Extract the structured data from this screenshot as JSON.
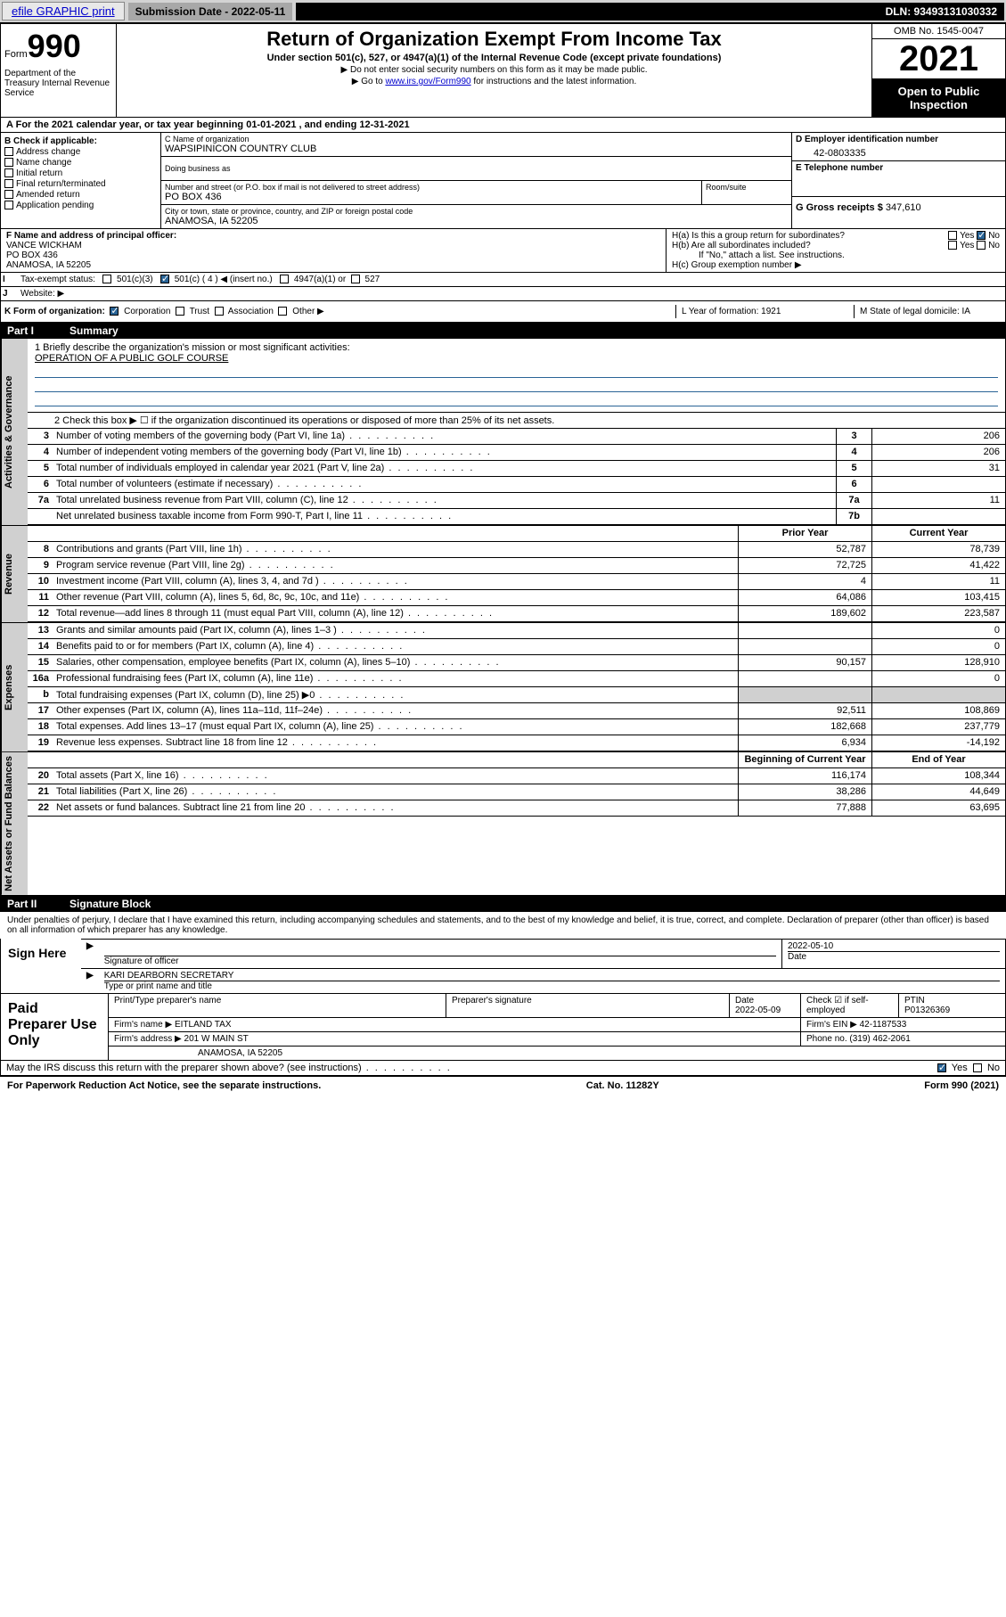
{
  "topbar": {
    "efile_link": "efile GRAPHIC print",
    "submission_label": "Submission Date - 2022-05-11",
    "dln": "DLN: 93493131030332"
  },
  "header": {
    "form_label": "Form",
    "form_number": "990",
    "title": "Return of Organization Exempt From Income Tax",
    "subtitle": "Under section 501(c), 527, or 4947(a)(1) of the Internal Revenue Code (except private foundations)",
    "note1": "▶ Do not enter social security numbers on this form as it may be made public.",
    "note2_pre": "▶ Go to ",
    "note2_link": "www.irs.gov/Form990",
    "note2_post": " for instructions and the latest information.",
    "omb": "OMB No. 1545-0047",
    "year": "2021",
    "open": "Open to Public Inspection",
    "dept": "Department of the Treasury Internal Revenue Service"
  },
  "line_a": "For the 2021 calendar year, or tax year beginning 01-01-2021   , and ending 12-31-2021",
  "check_b": {
    "hdr": "B Check if applicable:",
    "items": [
      "Address change",
      "Name change",
      "Initial return",
      "Final return/terminated",
      "Amended return",
      "Application pending"
    ]
  },
  "block_c": {
    "name_lbl": "C Name of organization",
    "name": "WAPSIPINICON COUNTRY CLUB",
    "dba_lbl": "Doing business as",
    "addr_lbl": "Number and street (or P.O. box if mail is not delivered to street address)",
    "room_lbl": "Room/suite",
    "addr": "PO BOX 436",
    "city_lbl": "City or town, state or province, country, and ZIP or foreign postal code",
    "city": "ANAMOSA, IA  52205"
  },
  "block_d": {
    "lbl": "D Employer identification number",
    "val": "42-0803335"
  },
  "block_e": {
    "lbl": "E Telephone number",
    "val": ""
  },
  "block_g": {
    "lbl": "G Gross receipts $",
    "val": "347,610"
  },
  "block_f": {
    "lbl": "F Name and address of principal officer:",
    "name": "VANCE WICKHAM",
    "addr1": "PO BOX 436",
    "addr2": "ANAMOSA, IA  52205"
  },
  "block_h": {
    "ha": "H(a)  Is this a group return for subordinates?",
    "ha_yes": "Yes",
    "ha_no": "No",
    "hb": "H(b)  Are all subordinates included?",
    "hb_yes": "Yes",
    "hb_no": "No",
    "hb_note": "If \"No,\" attach a list. See instructions.",
    "hc": "H(c)  Group exemption number ▶"
  },
  "line_i": {
    "lbl": "I",
    "text": "Tax-exempt status:",
    "o1": "501(c)(3)",
    "o2": "501(c) ( 4 ) ◀ (insert no.)",
    "o3": "4947(a)(1) or",
    "o4": "527"
  },
  "line_j": {
    "lbl": "J",
    "text": "Website: ▶"
  },
  "line_k": {
    "lbl": "K Form of organization:",
    "o1": "Corporation",
    "o2": "Trust",
    "o3": "Association",
    "o4": "Other ▶"
  },
  "line_l": {
    "text": "L Year of formation: 1921"
  },
  "line_m": {
    "text": "M State of legal domicile: IA"
  },
  "part1": {
    "num": "Part I",
    "title": "Summary"
  },
  "mission": {
    "lbl": "1  Briefly describe the organization's mission or most significant activities:",
    "text": "OPERATION OF A PUBLIC GOLF COURSE"
  },
  "line2": "2  Check this box ▶ ☐  if the organization discontinued its operations or disposed of more than 25% of its net assets.",
  "sections": {
    "gov": "Activities & Governance",
    "rev": "Revenue",
    "exp": "Expenses",
    "net": "Net Assets or Fund Balances"
  },
  "rows_gov": [
    {
      "n": "3",
      "d": "Number of voting members of the governing body (Part VI, line 1a)",
      "k": "3",
      "v": "206"
    },
    {
      "n": "4",
      "d": "Number of independent voting members of the governing body (Part VI, line 1b)",
      "k": "4",
      "v": "206"
    },
    {
      "n": "5",
      "d": "Total number of individuals employed in calendar year 2021 (Part V, line 2a)",
      "k": "5",
      "v": "31"
    },
    {
      "n": "6",
      "d": "Total number of volunteers (estimate if necessary)",
      "k": "6",
      "v": ""
    },
    {
      "n": "7a",
      "d": "Total unrelated business revenue from Part VIII, column (C), line 12",
      "k": "7a",
      "v": "11"
    },
    {
      "n": "",
      "d": "Net unrelated business taxable income from Form 990-T, Part I, line 11",
      "k": "7b",
      "v": ""
    }
  ],
  "col_hdr": {
    "py": "Prior Year",
    "cy": "Current Year",
    "bcy": "Beginning of Current Year",
    "eoy": "End of Year"
  },
  "rows_rev": [
    {
      "n": "8",
      "d": "Contributions and grants (Part VIII, line 1h)",
      "py": "52,787",
      "cy": "78,739"
    },
    {
      "n": "9",
      "d": "Program service revenue (Part VIII, line 2g)",
      "py": "72,725",
      "cy": "41,422"
    },
    {
      "n": "10",
      "d": "Investment income (Part VIII, column (A), lines 3, 4, and 7d )",
      "py": "4",
      "cy": "11"
    },
    {
      "n": "11",
      "d": "Other revenue (Part VIII, column (A), lines 5, 6d, 8c, 9c, 10c, and 11e)",
      "py": "64,086",
      "cy": "103,415"
    },
    {
      "n": "12",
      "d": "Total revenue—add lines 8 through 11 (must equal Part VIII, column (A), line 12)",
      "py": "189,602",
      "cy": "223,587"
    }
  ],
  "rows_exp": [
    {
      "n": "13",
      "d": "Grants and similar amounts paid (Part IX, column (A), lines 1–3 )",
      "py": "",
      "cy": "0"
    },
    {
      "n": "14",
      "d": "Benefits paid to or for members (Part IX, column (A), line 4)",
      "py": "",
      "cy": "0"
    },
    {
      "n": "15",
      "d": "Salaries, other compensation, employee benefits (Part IX, column (A), lines 5–10)",
      "py": "90,157",
      "cy": "128,910"
    },
    {
      "n": "16a",
      "d": "Professional fundraising fees (Part IX, column (A), line 11e)",
      "py": "",
      "cy": "0"
    },
    {
      "n": "b",
      "d": "Total fundraising expenses (Part IX, column (D), line 25) ▶0",
      "py": "shade",
      "cy": "shade"
    },
    {
      "n": "17",
      "d": "Other expenses (Part IX, column (A), lines 11a–11d, 11f–24e)",
      "py": "92,511",
      "cy": "108,869"
    },
    {
      "n": "18",
      "d": "Total expenses. Add lines 13–17 (must equal Part IX, column (A), line 25)",
      "py": "182,668",
      "cy": "237,779"
    },
    {
      "n": "19",
      "d": "Revenue less expenses. Subtract line 18 from line 12",
      "py": "6,934",
      "cy": "-14,192"
    }
  ],
  "rows_net": [
    {
      "n": "20",
      "d": "Total assets (Part X, line 16)",
      "py": "116,174",
      "cy": "108,344"
    },
    {
      "n": "21",
      "d": "Total liabilities (Part X, line 26)",
      "py": "38,286",
      "cy": "44,649"
    },
    {
      "n": "22",
      "d": "Net assets or fund balances. Subtract line 21 from line 20",
      "py": "77,888",
      "cy": "63,695"
    }
  ],
  "part2": {
    "num": "Part II",
    "title": "Signature Block"
  },
  "penalties": "Under penalties of perjury, I declare that I have examined this return, including accompanying schedules and statements, and to the best of my knowledge and belief, it is true, correct, and complete. Declaration of preparer (other than officer) is based on all information of which preparer has any knowledge.",
  "sign": {
    "lbl": "Sign Here",
    "sig_lbl": "Signature of officer",
    "date": "2022-05-10",
    "date_lbl": "Date",
    "name": "KARI DEARBORN  SECRETARY",
    "name_lbl": "Type or print name and title"
  },
  "prep": {
    "lbl": "Paid Preparer Use Only",
    "h1": "Print/Type preparer's name",
    "h2": "Preparer's signature",
    "h3": "Date",
    "h3v": "2022-05-09",
    "h4": "Check ☑ if self-employed",
    "h5": "PTIN",
    "h5v": "P01326369",
    "firm_lbl": "Firm's name   ▶",
    "firm": "EITLAND TAX",
    "ein_lbl": "Firm's EIN ▶",
    "ein": "42-1187533",
    "addr_lbl": "Firm's address ▶",
    "addr": "201 W MAIN ST",
    "addr2": "ANAMOSA, IA  52205",
    "phone_lbl": "Phone no.",
    "phone": "(319) 462-2061"
  },
  "may_irs": {
    "text": "May the IRS discuss this return with the preparer shown above? (see instructions)",
    "yes": "Yes",
    "no": "No"
  },
  "footer": {
    "pra": "For Paperwork Reduction Act Notice, see the separate instructions.",
    "cat": "Cat. No. 11282Y",
    "form": "Form 990 (2021)"
  }
}
